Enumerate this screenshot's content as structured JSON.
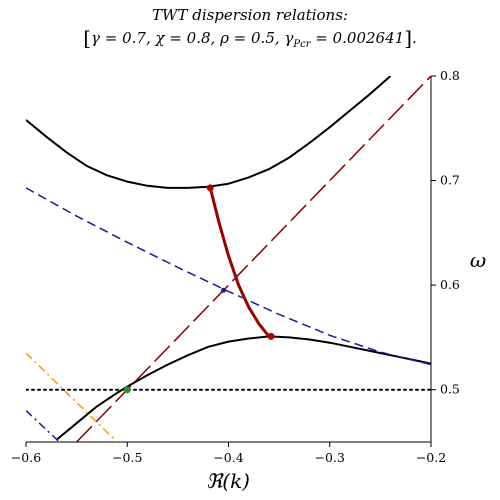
{
  "chart_data": {
    "type": "line",
    "title": "TWT dispersion relations:",
    "subtitle": {
      "gamma": "γ = 0.7",
      "chi": "χ = 0.8",
      "rho": "ρ = 0.5",
      "gamma_pcr_symbol": "γ",
      "gamma_pcr_sub": "Pcr",
      "gamma_pcr_value": "= 0.002641"
    },
    "xlabel": "ℜ(k)",
    "ylabel": "ω",
    "xlim": [
      -0.6,
      -0.2
    ],
    "ylim": [
      0.45,
      0.8
    ],
    "x_ticks": [
      {
        "value": -0.6,
        "label": "−0.6"
      },
      {
        "value": -0.5,
        "label": "−0.5"
      },
      {
        "value": -0.4,
        "label": "−0.4"
      },
      {
        "value": -0.3,
        "label": "−0.3"
      },
      {
        "value": -0.2,
        "label": "−0.2"
      }
    ],
    "y_ticks": [
      {
        "value": 0.5,
        "label": "0.5"
      },
      {
        "value": 0.6,
        "label": "0.6"
      },
      {
        "value": 0.7,
        "label": "0.7"
      },
      {
        "value": 0.8,
        "label": "0.8"
      }
    ],
    "grid": false,
    "series": [
      {
        "style": "solid",
        "color": "#000000",
        "width": 2,
        "points": [
          [
            -0.6,
            0.758
          ],
          [
            -0.58,
            0.742
          ],
          [
            -0.56,
            0.727
          ],
          [
            -0.54,
            0.714
          ],
          [
            -0.52,
            0.705
          ],
          [
            -0.5,
            0.699
          ],
          [
            -0.48,
            0.695
          ],
          [
            -0.46,
            0.693
          ],
          [
            -0.44,
            0.693
          ],
          [
            -0.42,
            0.694
          ],
          [
            -0.4,
            0.697
          ],
          [
            -0.38,
            0.703
          ],
          [
            -0.36,
            0.711
          ],
          [
            -0.34,
            0.722
          ],
          [
            -0.32,
            0.736
          ],
          [
            -0.3,
            0.751
          ],
          [
            -0.28,
            0.767
          ],
          [
            -0.26,
            0.783
          ],
          [
            -0.24,
            0.8
          ]
        ]
      },
      {
        "style": "solid",
        "color": "#000000",
        "width": 2,
        "points": [
          [
            -0.57,
            0.452
          ],
          [
            -0.55,
            0.468
          ],
          [
            -0.53,
            0.484
          ],
          [
            -0.51,
            0.497
          ],
          [
            -0.5,
            0.503
          ],
          [
            -0.48,
            0.514
          ],
          [
            -0.46,
            0.524
          ],
          [
            -0.44,
            0.533
          ],
          [
            -0.42,
            0.541
          ],
          [
            -0.4,
            0.546
          ],
          [
            -0.38,
            0.549
          ],
          [
            -0.36,
            0.551
          ],
          [
            -0.34,
            0.55
          ],
          [
            -0.32,
            0.548
          ],
          [
            -0.3,
            0.545
          ],
          [
            -0.28,
            0.541
          ],
          [
            -0.26,
            0.537
          ],
          [
            -0.24,
            0.533
          ],
          [
            -0.22,
            0.529
          ],
          [
            -0.2,
            0.525
          ]
        ]
      },
      {
        "style": "dashed",
        "color": "#1a1aa0",
        "width": 1.5,
        "points": [
          [
            -0.6,
            0.693
          ],
          [
            -0.55,
            0.666
          ],
          [
            -0.5,
            0.641
          ],
          [
            -0.45,
            0.617
          ],
          [
            -0.4,
            0.594
          ],
          [
            -0.35,
            0.572
          ],
          [
            -0.3,
            0.552
          ],
          [
            -0.25,
            0.536
          ],
          [
            -0.2,
            0.524
          ]
        ]
      },
      {
        "style": "longdash",
        "color": "#8b0000",
        "width": 1.5,
        "points": [
          [
            -0.55,
            0.45
          ],
          [
            -0.2,
            0.8
          ]
        ]
      },
      {
        "style": "dashdot",
        "color": "#ff9900",
        "width": 1.5,
        "points": [
          [
            -0.6,
            0.535
          ],
          [
            -0.51,
            0.45
          ]
        ]
      },
      {
        "style": "dashdot",
        "color": "#1a1aa0",
        "width": 1.5,
        "points": [
          [
            -0.6,
            0.48
          ],
          [
            -0.567,
            0.45
          ]
        ]
      },
      {
        "style": "dotted",
        "color": "#000000",
        "width": 2,
        "points": [
          [
            -0.6,
            0.5
          ],
          [
            -0.2,
            0.5
          ]
        ]
      },
      {
        "style": "solid",
        "color": "#9b0000",
        "width": 3,
        "points": [
          [
            -0.418,
            0.693
          ],
          [
            -0.41,
            0.662
          ],
          [
            -0.4,
            0.628
          ],
          [
            -0.39,
            0.6
          ],
          [
            -0.38,
            0.579
          ],
          [
            -0.37,
            0.563
          ],
          [
            -0.36,
            0.551
          ]
        ]
      }
    ],
    "markers": [
      {
        "x": -0.418,
        "y": 0.693,
        "color": "#b00000",
        "r": 3.5
      },
      {
        "x": -0.358,
        "y": 0.551,
        "color": "#b00000",
        "r": 3.5
      },
      {
        "x": -0.405,
        "y": 0.595,
        "color": "#1a1aa0",
        "r": 2.5
      },
      {
        "x": -0.5,
        "y": 0.5,
        "color": "#2e8b2e",
        "r": 3.5
      }
    ]
  }
}
